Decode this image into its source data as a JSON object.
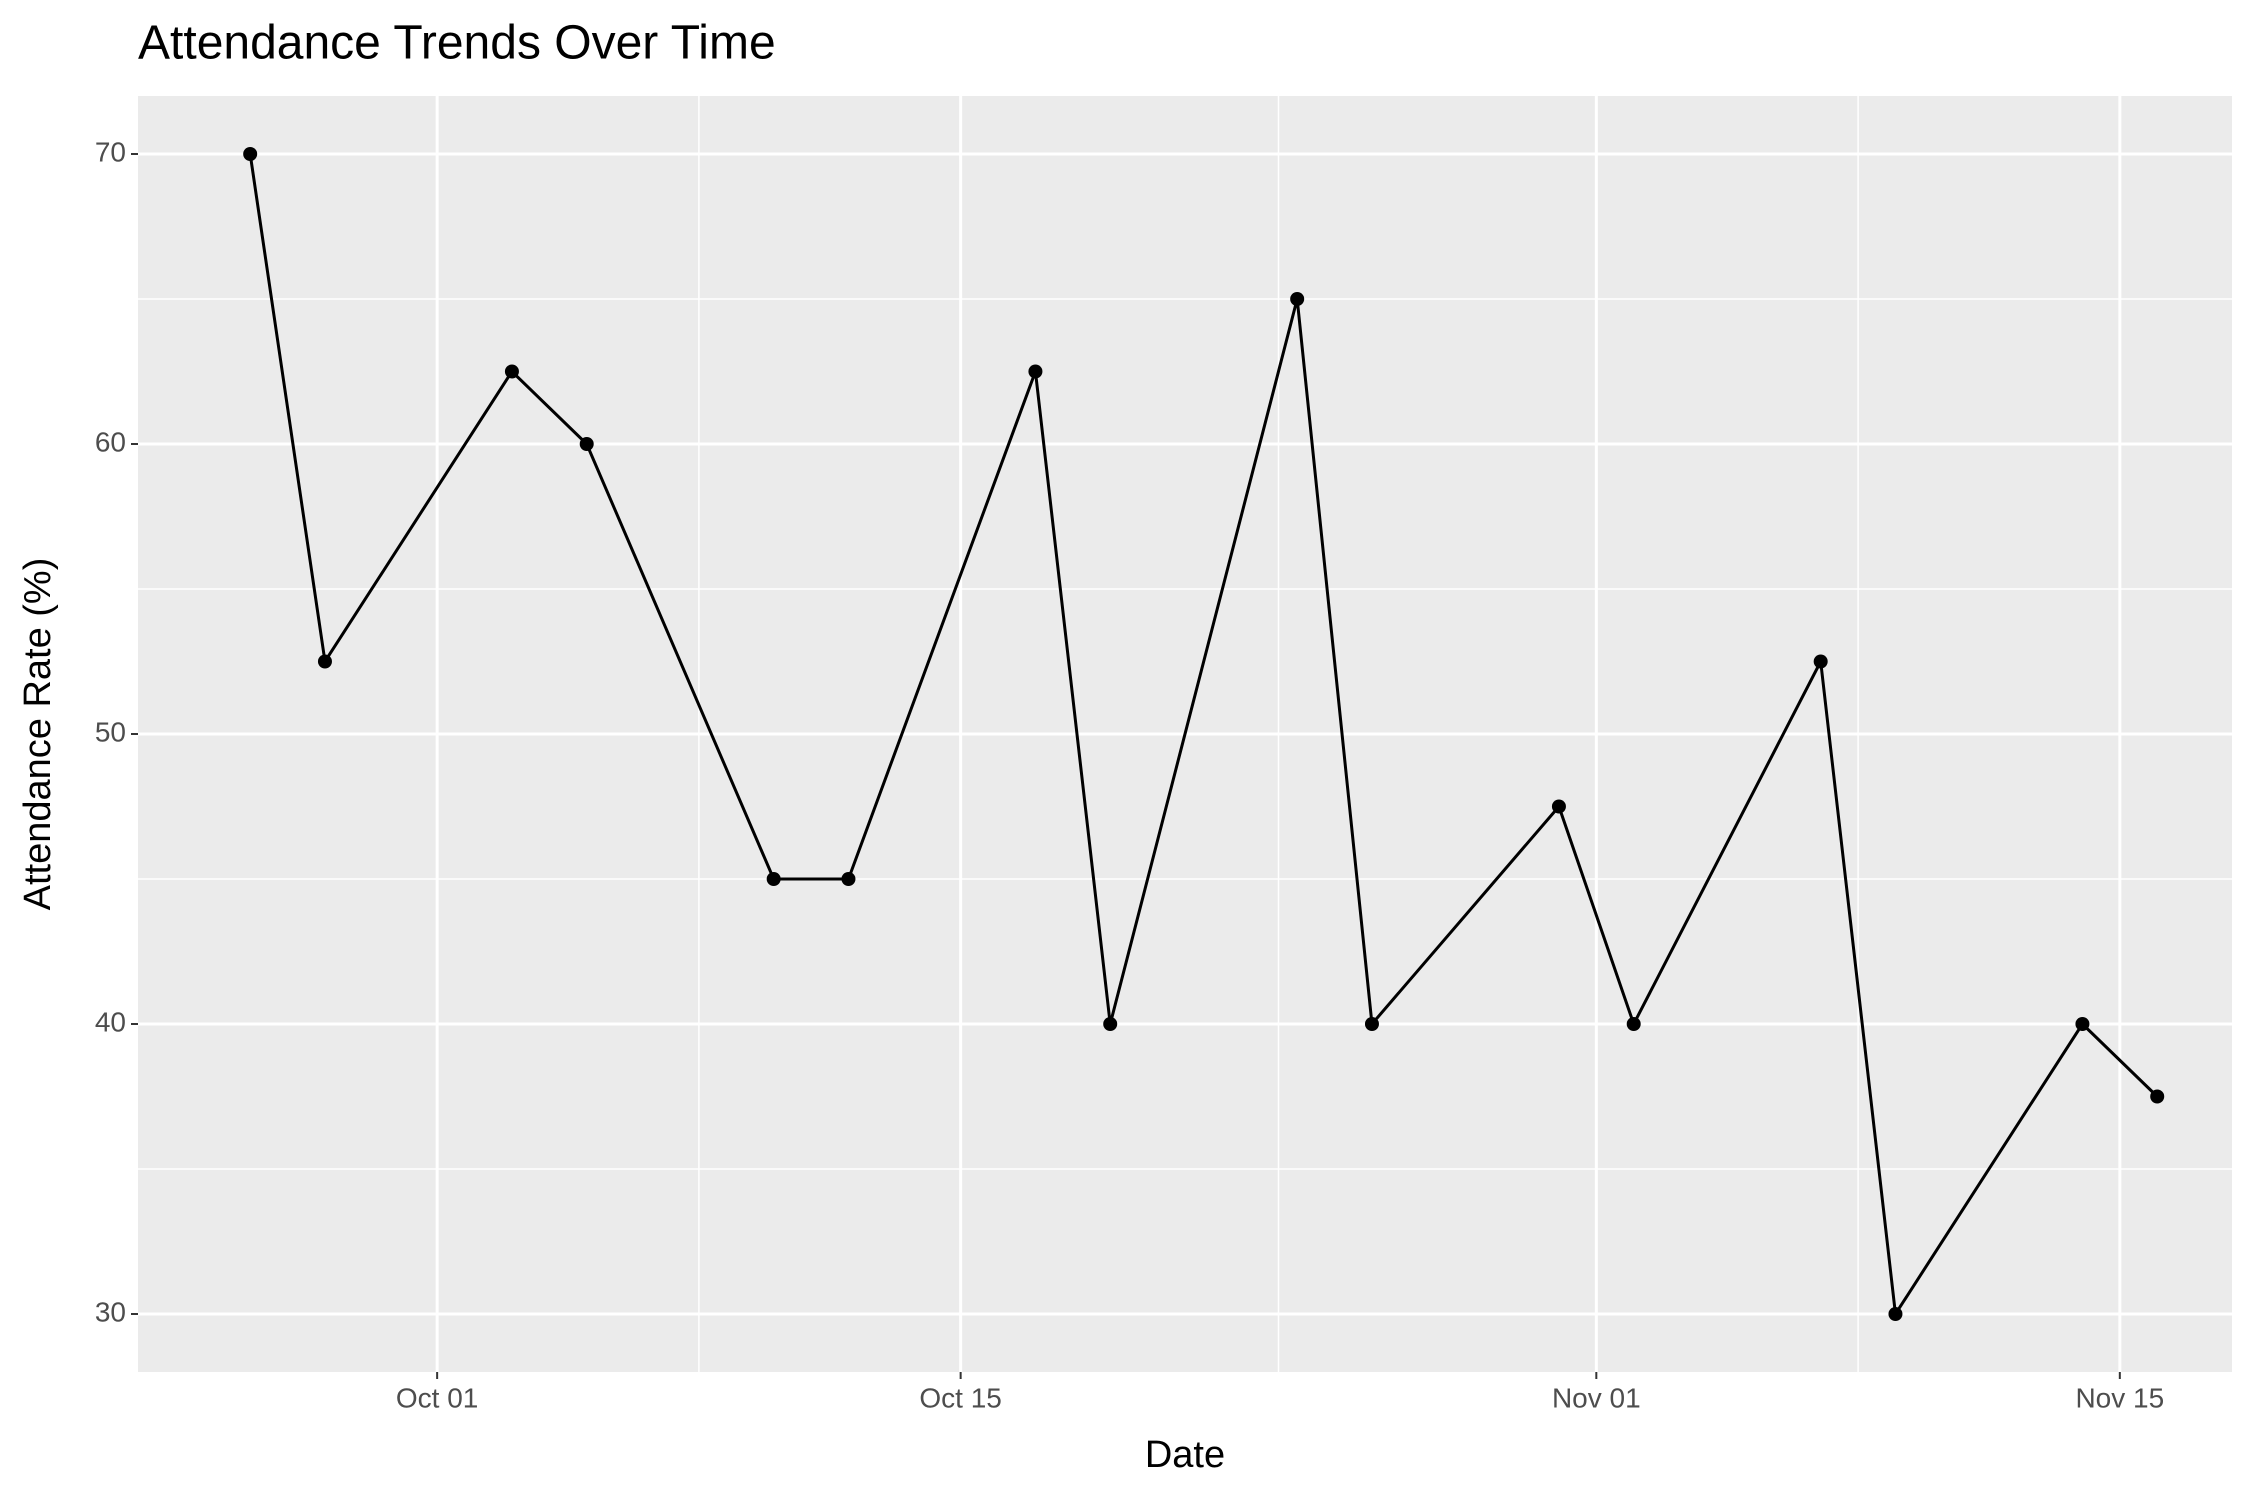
{
  "chart_data": {
    "type": "line",
    "title": "Attendance Trends Over Time",
    "x_label": "Date",
    "y_label": "Attendance Rate (%)",
    "x": [
      "Sep 26",
      "Sep 28",
      "Oct 03",
      "Oct 05",
      "Oct 10",
      "Oct 12",
      "Oct 17",
      "Oct 19",
      "Oct 24",
      "Oct 26",
      "Oct 31",
      "Nov 02",
      "Nov 07",
      "Nov 09",
      "Nov 14",
      "Nov 16"
    ],
    "series": [
      {
        "name": "Attendance Rate",
        "color": "#000000",
        "values": [
          70,
          52.5,
          62.5,
          60,
          45,
          45,
          62.5,
          40,
          65,
          40,
          47.5,
          40,
          52.5,
          30,
          40,
          37.5
        ]
      }
    ],
    "xlim": [
      "Sep 23",
      "Nov 18"
    ],
    "xticks": [
      "Oct 01",
      "Oct 15",
      "Nov 01",
      "Nov 15"
    ],
    "ylim": [
      28,
      72
    ],
    "yticks": [
      30,
      40,
      50,
      60,
      70
    ],
    "grid": true
  }
}
